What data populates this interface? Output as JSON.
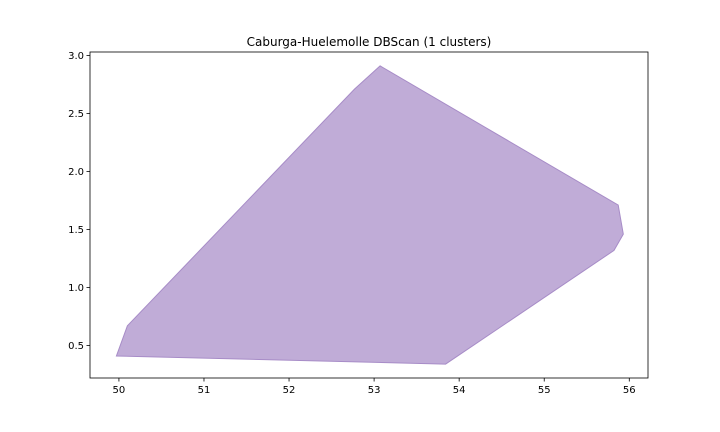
{
  "chart_data": {
    "type": "area",
    "title": "Caburga-Huelemolle DBScan (1 clusters)",
    "xlabel": "",
    "ylabel": "",
    "xlim": [
      49.66,
      56.22
    ],
    "ylim": [
      0.22,
      3.03
    ],
    "x_ticks": [
      "50",
      "51",
      "52",
      "53",
      "54",
      "55",
      "56"
    ],
    "y_ticks": [
      "0.5",
      "1.0",
      "1.5",
      "2.0",
      "2.5",
      "3.0"
    ],
    "grid": false,
    "legend": "none",
    "series": [
      {
        "fill_color": "#c0acd7",
        "edge_color": "#a78cc7",
        "alpha": 1.0,
        "points": [
          [
            49.97,
            0.41
          ],
          [
            50.1,
            0.67
          ],
          [
            52.77,
            2.71
          ],
          [
            53.07,
            2.91
          ],
          [
            55.87,
            1.71
          ],
          [
            55.93,
            1.46
          ],
          [
            55.82,
            1.32
          ],
          [
            53.84,
            0.34
          ],
          [
            49.97,
            0.41
          ]
        ]
      }
    ]
  }
}
